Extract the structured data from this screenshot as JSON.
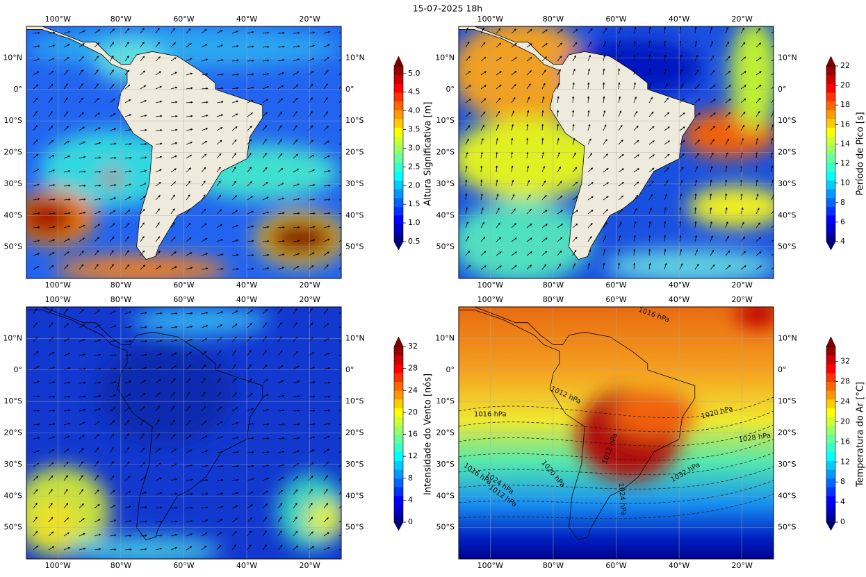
{
  "title": "15-07-2025 18h",
  "xlim": [
    -110,
    -10
  ],
  "ylim": [
    -60,
    20
  ],
  "lon_ticks": [
    {
      "value": -100,
      "label": "100°W"
    },
    {
      "value": -80,
      "label": "80°W"
    },
    {
      "value": -60,
      "label": "60°W"
    },
    {
      "value": -40,
      "label": "40°W"
    },
    {
      "value": -20,
      "label": "20°W"
    }
  ],
  "lat_ticks": [
    {
      "value": 10,
      "label": "10°N"
    },
    {
      "value": 0,
      "label": "0°"
    },
    {
      "value": -10,
      "label": "10°S"
    },
    {
      "value": -20,
      "label": "20°S"
    },
    {
      "value": -30,
      "label": "30°S"
    },
    {
      "value": -40,
      "label": "40°S"
    },
    {
      "value": -50,
      "label": "50°S"
    }
  ],
  "panels": [
    {
      "colorbar_label": "Altura Significativa [m]",
      "clim": [
        0.5,
        5.2
      ],
      "cticks": [
        0.5,
        {
          "value": 1,
          "label": "1.0"
        },
        1.5,
        {
          "value": 2,
          "label": "2.0"
        },
        2.5,
        {
          "value": 3,
          "label": "3.0"
        },
        3.5,
        {
          "value": 4,
          "label": "4.0"
        },
        4.5,
        {
          "value": 5,
          "label": "5.0"
        }
      ]
    },
    {
      "colorbar_label": "Período de Pico [s]",
      "clim": [
        4,
        22
      ],
      "cticks": [
        4,
        6,
        8,
        10,
        12,
        14,
        16,
        18,
        20,
        22
      ]
    },
    {
      "colorbar_label": "Intensidade do Vento [nós]",
      "clim": [
        0,
        32
      ],
      "cticks": [
        0,
        4,
        8,
        12,
        16,
        20,
        24,
        28,
        32
      ]
    },
    {
      "colorbar_label": "Temperatura do Ar [°C]",
      "clim": [
        0,
        35
      ],
      "cticks": [
        0,
        4,
        8,
        12,
        16,
        20,
        24,
        28,
        32
      ],
      "contour_labels": [
        "1016 hPa",
        "1012 hPa",
        "1016 hPa",
        "1020 hPa",
        "1028 hPa",
        "1032 hPa",
        "1020 hPa",
        "1024 hPa",
        "1016 hPa",
        "1012 hPa",
        "1024 hPa",
        "1012 hPa"
      ]
    }
  ]
}
